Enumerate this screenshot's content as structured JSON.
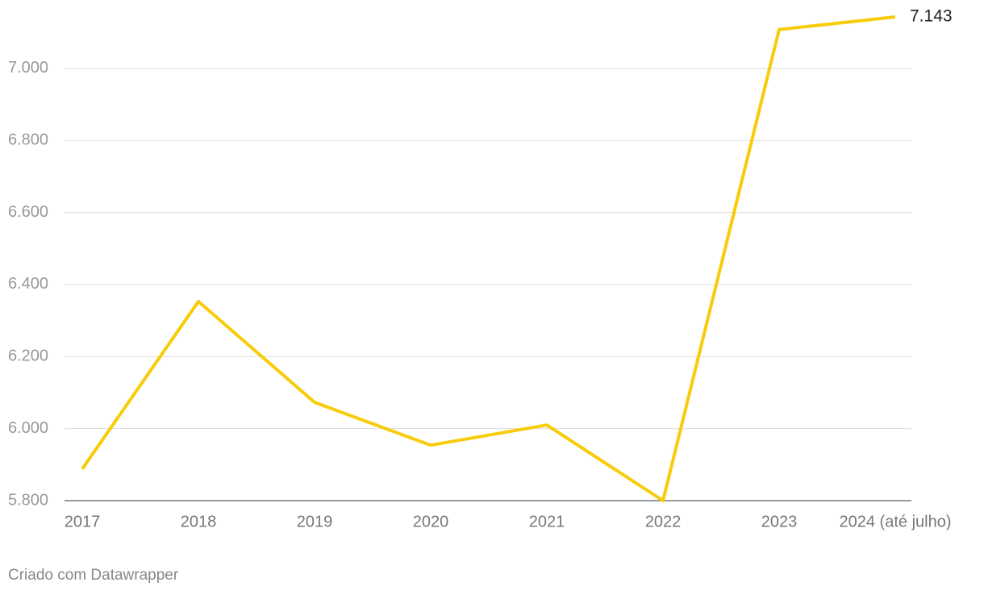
{
  "chart_data": {
    "type": "line",
    "categories": [
      "2017",
      "2018",
      "2019",
      "2020",
      "2021",
      "2022",
      "2023",
      "2024 (até julho)"
    ],
    "series": [
      {
        "color": "#f8cc0b",
        "values": [
          5888,
          6353,
          6073,
          5954,
          6010,
          5800,
          7108,
          7143
        ],
        "value_labels": [
          null,
          null,
          null,
          null,
          null,
          null,
          null,
          "7.143"
        ]
      }
    ],
    "ylim": [
      5800,
      7143
    ],
    "yticks": [
      {
        "value": 5800,
        "label": "5.800"
      },
      {
        "value": 6000,
        "label": "6.000"
      },
      {
        "value": 6200,
        "label": "6.200"
      },
      {
        "value": 6400,
        "label": "6.400"
      },
      {
        "value": 6600,
        "label": "6.600"
      },
      {
        "value": 6800,
        "label": "6.800"
      },
      {
        "value": 7000,
        "label": "7.000"
      }
    ],
    "grid": true,
    "footer": "Criado com Datawrapper"
  }
}
